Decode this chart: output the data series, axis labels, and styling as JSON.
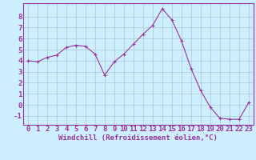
{
  "x": [
    0,
    1,
    2,
    3,
    4,
    5,
    6,
    7,
    8,
    9,
    10,
    11,
    12,
    13,
    14,
    15,
    16,
    17,
    18,
    19,
    20,
    21,
    22,
    23
  ],
  "y": [
    4.0,
    3.9,
    4.3,
    4.5,
    5.2,
    5.4,
    5.3,
    4.6,
    2.7,
    3.9,
    4.6,
    5.5,
    6.4,
    7.2,
    8.7,
    7.7,
    5.8,
    3.3,
    1.3,
    -0.2,
    -1.2,
    -1.3,
    -1.3,
    0.2
  ],
  "line_color": "#993399",
  "marker": "+",
  "marker_size": 3,
  "bg_color": "#cceeff",
  "grid_color": "#aacccc",
  "xlabel": "Windchill (Refroidissement éolien,°C)",
  "xlim": [
    -0.5,
    23.5
  ],
  "ylim": [
    -1.8,
    9.2
  ],
  "yticks": [
    -1,
    0,
    1,
    2,
    3,
    4,
    5,
    6,
    7,
    8
  ],
  "xticks": [
    0,
    1,
    2,
    3,
    4,
    5,
    6,
    7,
    8,
    9,
    10,
    11,
    12,
    13,
    14,
    15,
    16,
    17,
    18,
    19,
    20,
    21,
    22,
    23
  ],
  "tick_color": "#993399",
  "label_color": "#993399",
  "axis_color": "#993399",
  "font_size": 6.5
}
